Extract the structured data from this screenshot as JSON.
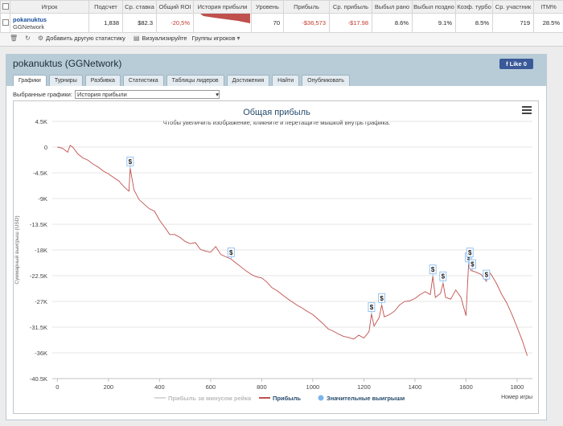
{
  "stats_table": {
    "headers": [
      "Игрок",
      "Подсчет",
      "Ср. ставка",
      "Общий ROI",
      "История прибыли",
      "Уровень",
      "Прибыль",
      "Ср. прибыль",
      "Выбыл рано",
      "Выбыл поздно",
      "Коэф. турбо",
      "Ср. участник",
      "ITM%"
    ],
    "row": {
      "player": "pokanuktus",
      "network": "GGNetwork",
      "count": "1,838",
      "avg_stake": "$82.3",
      "roi": "-20,5%",
      "level": "70",
      "profit": "-$36,573",
      "avg_profit": "-$17.98",
      "early": "8.6%",
      "late": "9.1%",
      "turbo": "8.5%",
      "avg_field": "719",
      "itm": "28.5%"
    }
  },
  "toolbar": {
    "add_stats": "Добавить другую статистику",
    "visualize": "Визуализируйте",
    "groups": "Группы игроков"
  },
  "panel": {
    "title": "pokanuktus (GGNetwork)",
    "like": "Like 0",
    "tabs": [
      "Графики",
      "Турниры",
      "Разбивка",
      "Статистика",
      "Таблицы лидеров",
      "Достижения",
      "Найти",
      "Опубликовать"
    ],
    "selected_label": "Выбранные графики:",
    "selected_value": "История прибыли"
  },
  "chart_data": {
    "type": "line",
    "title": "Общая прибыль",
    "subtitle": "Чтобы увеличить изображение, кликните и перетащите мышкой внутрь графика.",
    "xlabel": "Номер игры",
    "ylabel": "Суммарный выигрыш (USD)",
    "xlim": [
      -20,
      1860
    ],
    "ylim": [
      -40500,
      4500
    ],
    "x_ticks": [
      0,
      200,
      400,
      600,
      800,
      1000,
      1200,
      1400,
      1600,
      1800
    ],
    "y_ticks": [
      4500,
      0,
      -4500,
      -9000,
      -13500,
      -18000,
      -22500,
      -27000,
      -31500,
      -36000,
      -40500
    ],
    "y_tick_labels": [
      "4.5K",
      "0",
      "-4.5K",
      "-9K",
      "-13.5K",
      "-18K",
      "-22.5K",
      "-27K",
      "-31.5K",
      "-36K",
      "-40.5K"
    ],
    "series": [
      {
        "name": "Прибыль",
        "color": "#c0504d",
        "x": [
          0,
          20,
          40,
          50,
          60,
          80,
          100,
          120,
          140,
          160,
          180,
          200,
          220,
          240,
          260,
          280,
          285,
          300,
          320,
          340,
          360,
          380,
          400,
          420,
          440,
          460,
          480,
          500,
          520,
          540,
          560,
          580,
          600,
          620,
          640,
          660,
          680,
          700,
          720,
          740,
          760,
          780,
          800,
          820,
          840,
          860,
          880,
          900,
          920,
          940,
          960,
          980,
          1000,
          1020,
          1040,
          1060,
          1080,
          1100,
          1120,
          1140,
          1160,
          1180,
          1200,
          1220,
          1230,
          1240,
          1260,
          1270,
          1280,
          1300,
          1320,
          1340,
          1360,
          1380,
          1400,
          1420,
          1440,
          1460,
          1470,
          1480,
          1500,
          1510,
          1520,
          1540,
          1560,
          1580,
          1600,
          1610,
          1620,
          1640,
          1660,
          1680,
          1690,
          1700,
          1720,
          1740,
          1760,
          1780,
          1800,
          1820,
          1840
        ],
        "y": [
          0,
          -200,
          -900,
          300,
          0,
          -1200,
          -1900,
          -2300,
          -3000,
          -3500,
          -4200,
          -4700,
          -5300,
          -5900,
          -6900,
          -7700,
          -3700,
          -7500,
          -9200,
          -10000,
          -10800,
          -11200,
          -12800,
          -14000,
          -15300,
          -15300,
          -15800,
          -16500,
          -16900,
          -16700,
          -17900,
          -18200,
          -18400,
          -17400,
          -18800,
          -19200,
          -19600,
          -20300,
          -21000,
          -21700,
          -22300,
          -22700,
          -22900,
          -23600,
          -24600,
          -25100,
          -25800,
          -26500,
          -27100,
          -27700,
          -28200,
          -28800,
          -29300,
          -30100,
          -30900,
          -31800,
          -32200,
          -32700,
          -33100,
          -33300,
          -33600,
          -32900,
          -33400,
          -32300,
          -29200,
          -31300,
          -29800,
          -27600,
          -29700,
          -29300,
          -28700,
          -27600,
          -27000,
          -26900,
          -26500,
          -25800,
          -25300,
          -25800,
          -22600,
          -26300,
          -25600,
          -23800,
          -26300,
          -26600,
          -25000,
          -26300,
          -29500,
          -20500,
          -21600,
          -21900,
          -22300,
          -23500,
          -21800,
          -22400,
          -23900,
          -25800,
          -27300,
          -29300,
          -31500,
          -33800,
          -36500
        ]
      },
      {
        "name": "Прибыль за минусом рейка",
        "color": "#d9d9d9",
        "legend_only": true
      }
    ],
    "significant_wins": {
      "name": "Значительные выигрыши",
      "color": "#7cb5ec",
      "marker_label": "$",
      "x": [
        285,
        680,
        1230,
        1270,
        1470,
        1510,
        1610,
        1615,
        1625,
        1680
      ]
    }
  }
}
